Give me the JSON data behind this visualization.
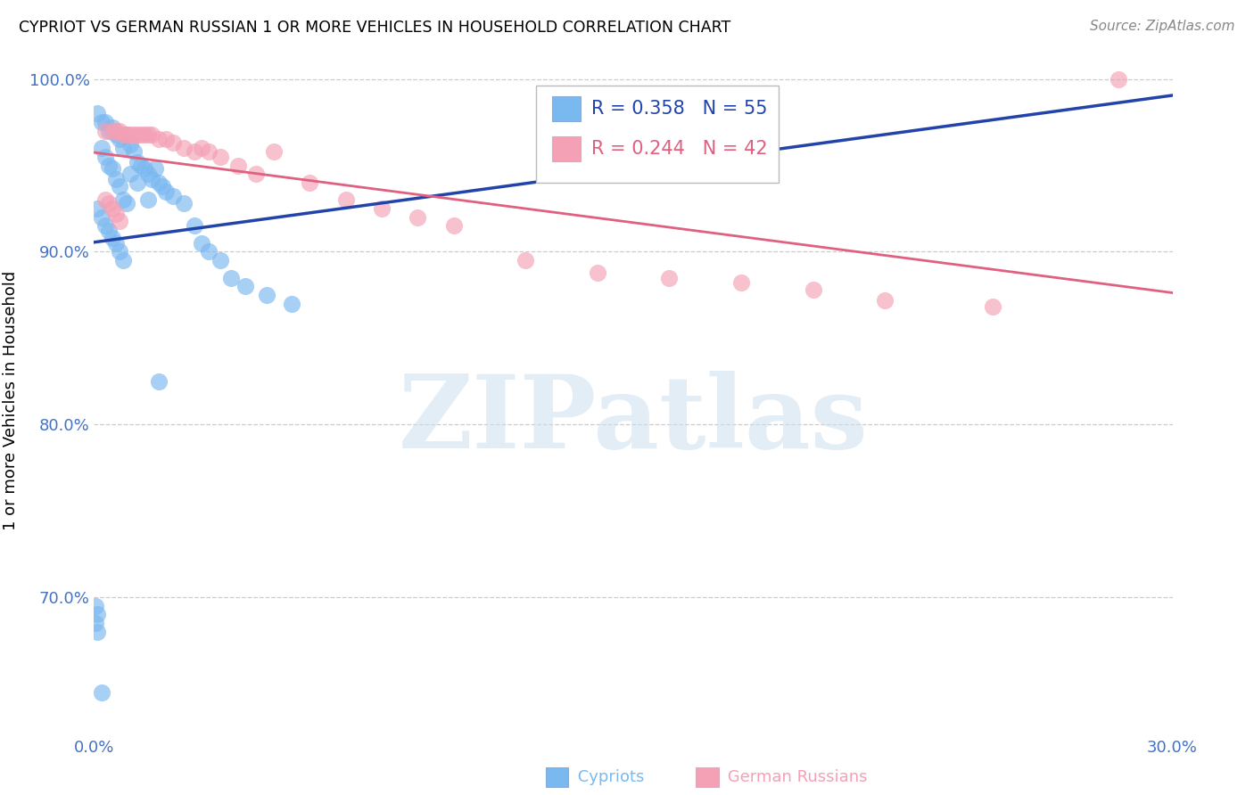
{
  "title": "CYPRIOT VS GERMAN RUSSIAN 1 OR MORE VEHICLES IN HOUSEHOLD CORRELATION CHART",
  "source": "Source: ZipAtlas.com",
  "ylabel": "1 or more Vehicles in Household",
  "watermark": "ZIPatlas",
  "xlim": [
    0.0,
    0.3
  ],
  "ylim": [
    0.62,
    1.008
  ],
  "ytick_vals": [
    0.7,
    0.8,
    0.9,
    1.0
  ],
  "ytick_labels": [
    "70.0%",
    "80.0%",
    "90.0%",
    "100.0%"
  ],
  "xtick_vals": [
    0.0,
    0.05,
    0.1,
    0.15,
    0.2,
    0.25,
    0.3
  ],
  "xtick_labels": [
    "0.0%",
    "",
    "",
    "",
    "",
    "",
    "30.0%"
  ],
  "blue_R": 0.358,
  "blue_N": 55,
  "pink_R": 0.244,
  "pink_N": 42,
  "cypriot_color": "#7ab8f0",
  "german_russian_color": "#f4a0b5",
  "blue_line_color": "#2244aa",
  "pink_line_color": "#e06080",
  "background_color": "#ffffff",
  "grid_color": "#cccccc",
  "axis_label_color": "#4472c4",
  "blue_x": [
    0.001,
    0.002,
    0.003,
    0.004,
    0.005,
    0.006,
    0.007,
    0.008,
    0.009,
    0.01,
    0.011,
    0.012,
    0.013,
    0.014,
    0.015,
    0.016,
    0.017,
    0.018,
    0.019,
    0.02,
    0.022,
    0.025,
    0.028,
    0.03,
    0.032,
    0.035,
    0.038,
    0.042,
    0.048,
    0.055,
    0.002,
    0.003,
    0.004,
    0.005,
    0.006,
    0.007,
    0.008,
    0.009,
    0.01,
    0.012,
    0.015,
    0.018,
    0.001,
    0.002,
    0.003,
    0.004,
    0.005,
    0.006,
    0.007,
    0.008,
    0.0005,
    0.001,
    0.0005,
    0.001,
    0.002
  ],
  "blue_y": [
    0.98,
    0.975,
    0.975,
    0.97,
    0.972,
    0.968,
    0.965,
    0.96,
    0.968,
    0.962,
    0.958,
    0.952,
    0.95,
    0.948,
    0.945,
    0.942,
    0.948,
    0.94,
    0.938,
    0.935,
    0.932,
    0.928,
    0.915,
    0.905,
    0.9,
    0.895,
    0.885,
    0.88,
    0.875,
    0.87,
    0.96,
    0.955,
    0.95,
    0.948,
    0.942,
    0.938,
    0.93,
    0.928,
    0.945,
    0.94,
    0.93,
    0.825,
    0.925,
    0.92,
    0.915,
    0.912,
    0.908,
    0.905,
    0.9,
    0.895,
    0.695,
    0.69,
    0.685,
    0.68,
    0.645
  ],
  "pink_x": [
    0.003,
    0.005,
    0.006,
    0.007,
    0.008,
    0.009,
    0.01,
    0.011,
    0.012,
    0.013,
    0.014,
    0.015,
    0.016,
    0.018,
    0.02,
    0.022,
    0.025,
    0.028,
    0.03,
    0.032,
    0.035,
    0.04,
    0.045,
    0.05,
    0.06,
    0.07,
    0.08,
    0.09,
    0.1,
    0.12,
    0.14,
    0.16,
    0.18,
    0.2,
    0.22,
    0.25,
    0.003,
    0.004,
    0.005,
    0.006,
    0.007,
    0.285
  ],
  "pink_y": [
    0.97,
    0.97,
    0.97,
    0.97,
    0.968,
    0.968,
    0.968,
    0.968,
    0.968,
    0.968,
    0.968,
    0.968,
    0.968,
    0.965,
    0.965,
    0.963,
    0.96,
    0.958,
    0.96,
    0.958,
    0.955,
    0.95,
    0.945,
    0.958,
    0.94,
    0.93,
    0.925,
    0.92,
    0.915,
    0.895,
    0.888,
    0.885,
    0.882,
    0.878,
    0.872,
    0.868,
    0.93,
    0.928,
    0.925,
    0.922,
    0.918,
    1.0
  ]
}
